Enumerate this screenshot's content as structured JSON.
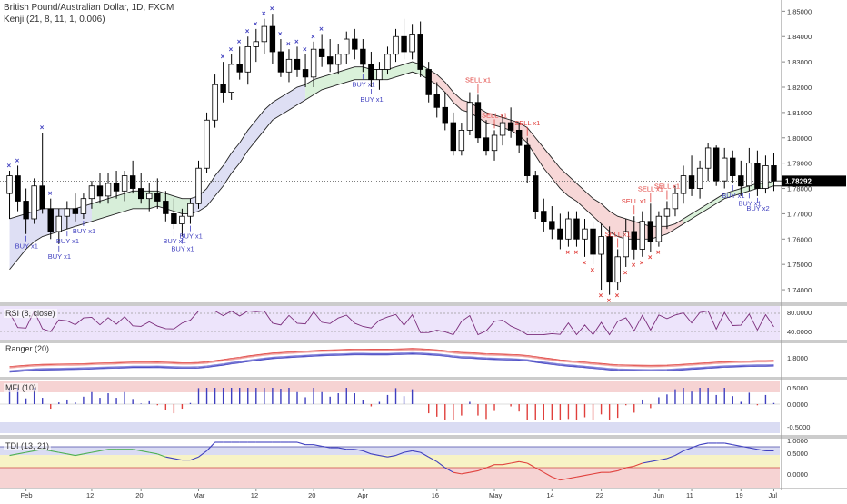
{
  "header": {
    "symbol": "British Pound/Australian Dollar, 1D, FXCM",
    "indicator": "Kenji (21, 8, 11, 1, 0.006)"
  },
  "last_price": "1.78292",
  "panes": {
    "rsi_label": "RSI (8, close)",
    "ranger_label": "Ranger (20)",
    "mfi_label": "MFI (10)",
    "tdi_label": "TDI (13, 21)"
  },
  "colors": {
    "up": "#ffffff",
    "down": "#000000",
    "buy": "#3f3fbf",
    "sell": "#e0403c",
    "band_up_fill": "#d6efd6",
    "band_down_fill": "#f6d3d3",
    "band_blue_fill": "#dadcf3",
    "rsi": "#7b2d7b",
    "rsi_fill": "#ede4fb",
    "ranger_red": "#e0403c",
    "ranger_blue": "#3f3fbf",
    "mfi_up": "#3f3fbf",
    "mfi_down": "#e0403c",
    "tdi_red": "#e0403c",
    "tdi_blue": "#3f3fbf",
    "tdi_green": "#4caf50"
  },
  "chart_data": {
    "type": "candlestick",
    "x_tick_labels": [
      "Feb",
      "12",
      "20",
      "Mar",
      "12",
      "20",
      "Apr",
      "16",
      "May",
      "14",
      "22",
      "Jun",
      "11",
      "19",
      "Jul"
    ],
    "y_tick_labels": [
      "1.85000",
      "1.84000",
      "1.83000",
      "1.82000",
      "1.81000",
      "1.80000",
      "1.79000",
      "1.78000",
      "1.77000",
      "1.76000",
      "1.75000",
      "1.74000"
    ],
    "ylim": [
      1.735,
      1.853
    ],
    "candles": [
      {
        "o": 1.778,
        "h": 1.787,
        "l": 1.768,
        "c": 1.785
      },
      {
        "o": 1.785,
        "h": 1.789,
        "l": 1.771,
        "c": 1.775
      },
      {
        "o": 1.775,
        "h": 1.78,
        "l": 1.762,
        "c": 1.768
      },
      {
        "o": 1.768,
        "h": 1.784,
        "l": 1.766,
        "c": 1.781
      },
      {
        "o": 1.781,
        "h": 1.802,
        "l": 1.77,
        "c": 1.772
      },
      {
        "o": 1.772,
        "h": 1.776,
        "l": 1.76,
        "c": 1.763
      },
      {
        "o": 1.763,
        "h": 1.772,
        "l": 1.758,
        "c": 1.769
      },
      {
        "o": 1.769,
        "h": 1.775,
        "l": 1.764,
        "c": 1.772
      },
      {
        "o": 1.772,
        "h": 1.778,
        "l": 1.767,
        "c": 1.77
      },
      {
        "o": 1.77,
        "h": 1.778,
        "l": 1.768,
        "c": 1.776
      },
      {
        "o": 1.776,
        "h": 1.783,
        "l": 1.772,
        "c": 1.781
      },
      {
        "o": 1.781,
        "h": 1.786,
        "l": 1.774,
        "c": 1.777
      },
      {
        "o": 1.777,
        "h": 1.786,
        "l": 1.774,
        "c": 1.782
      },
      {
        "o": 1.782,
        "h": 1.787,
        "l": 1.776,
        "c": 1.779
      },
      {
        "o": 1.779,
        "h": 1.787,
        "l": 1.775,
        "c": 1.785
      },
      {
        "o": 1.785,
        "h": 1.791,
        "l": 1.778,
        "c": 1.78
      },
      {
        "o": 1.78,
        "h": 1.786,
        "l": 1.774,
        "c": 1.776
      },
      {
        "o": 1.776,
        "h": 1.782,
        "l": 1.771,
        "c": 1.778
      },
      {
        "o": 1.778,
        "h": 1.784,
        "l": 1.772,
        "c": 1.775
      },
      {
        "o": 1.775,
        "h": 1.779,
        "l": 1.767,
        "c": 1.77
      },
      {
        "o": 1.77,
        "h": 1.776,
        "l": 1.764,
        "c": 1.766
      },
      {
        "o": 1.766,
        "h": 1.772,
        "l": 1.761,
        "c": 1.769
      },
      {
        "o": 1.769,
        "h": 1.776,
        "l": 1.766,
        "c": 1.774
      },
      {
        "o": 1.774,
        "h": 1.791,
        "l": 1.772,
        "c": 1.788
      },
      {
        "o": 1.788,
        "h": 1.81,
        "l": 1.786,
        "c": 1.807
      },
      {
        "o": 1.807,
        "h": 1.825,
        "l": 1.804,
        "c": 1.821
      },
      {
        "o": 1.821,
        "h": 1.83,
        "l": 1.814,
        "c": 1.818
      },
      {
        "o": 1.818,
        "h": 1.833,
        "l": 1.815,
        "c": 1.829
      },
      {
        "o": 1.829,
        "h": 1.836,
        "l": 1.823,
        "c": 1.826
      },
      {
        "o": 1.826,
        "h": 1.84,
        "l": 1.821,
        "c": 1.836
      },
      {
        "o": 1.836,
        "h": 1.843,
        "l": 1.83,
        "c": 1.838
      },
      {
        "o": 1.838,
        "h": 1.847,
        "l": 1.833,
        "c": 1.844
      },
      {
        "o": 1.844,
        "h": 1.849,
        "l": 1.829,
        "c": 1.834
      },
      {
        "o": 1.834,
        "h": 1.839,
        "l": 1.824,
        "c": 1.826
      },
      {
        "o": 1.826,
        "h": 1.835,
        "l": 1.822,
        "c": 1.831
      },
      {
        "o": 1.831,
        "h": 1.836,
        "l": 1.824,
        "c": 1.827
      },
      {
        "o": 1.827,
        "h": 1.833,
        "l": 1.82,
        "c": 1.824
      },
      {
        "o": 1.824,
        "h": 1.838,
        "l": 1.82,
        "c": 1.835
      },
      {
        "o": 1.835,
        "h": 1.841,
        "l": 1.828,
        "c": 1.832
      },
      {
        "o": 1.832,
        "h": 1.839,
        "l": 1.826,
        "c": 1.829
      },
      {
        "o": 1.829,
        "h": 1.837,
        "l": 1.825,
        "c": 1.833
      },
      {
        "o": 1.833,
        "h": 1.842,
        "l": 1.829,
        "c": 1.839
      },
      {
        "o": 1.839,
        "h": 1.843,
        "l": 1.831,
        "c": 1.835
      },
      {
        "o": 1.835,
        "h": 1.839,
        "l": 1.826,
        "c": 1.829
      },
      {
        "o": 1.829,
        "h": 1.834,
        "l": 1.82,
        "c": 1.823
      },
      {
        "o": 1.823,
        "h": 1.83,
        "l": 1.819,
        "c": 1.827
      },
      {
        "o": 1.827,
        "h": 1.836,
        "l": 1.825,
        "c": 1.833
      },
      {
        "o": 1.833,
        "h": 1.843,
        "l": 1.83,
        "c": 1.84
      },
      {
        "o": 1.84,
        "h": 1.847,
        "l": 1.831,
        "c": 1.834
      },
      {
        "o": 1.834,
        "h": 1.845,
        "l": 1.831,
        "c": 1.841
      },
      {
        "o": 1.841,
        "h": 1.846,
        "l": 1.824,
        "c": 1.827
      },
      {
        "o": 1.827,
        "h": 1.83,
        "l": 1.814,
        "c": 1.817
      },
      {
        "o": 1.817,
        "h": 1.822,
        "l": 1.808,
        "c": 1.812
      },
      {
        "o": 1.812,
        "h": 1.818,
        "l": 1.803,
        "c": 1.806
      },
      {
        "o": 1.806,
        "h": 1.81,
        "l": 1.793,
        "c": 1.795
      },
      {
        "o": 1.795,
        "h": 1.806,
        "l": 1.793,
        "c": 1.803
      },
      {
        "o": 1.803,
        "h": 1.818,
        "l": 1.801,
        "c": 1.814
      },
      {
        "o": 1.814,
        "h": 1.817,
        "l": 1.798,
        "c": 1.8
      },
      {
        "o": 1.8,
        "h": 1.807,
        "l": 1.793,
        "c": 1.795
      },
      {
        "o": 1.795,
        "h": 1.803,
        "l": 1.791,
        "c": 1.801
      },
      {
        "o": 1.801,
        "h": 1.809,
        "l": 1.797,
        "c": 1.806
      },
      {
        "o": 1.806,
        "h": 1.812,
        "l": 1.8,
        "c": 1.803
      },
      {
        "o": 1.803,
        "h": 1.806,
        "l": 1.794,
        "c": 1.797
      },
      {
        "o": 1.797,
        "h": 1.8,
        "l": 1.782,
        "c": 1.785
      },
      {
        "o": 1.785,
        "h": 1.787,
        "l": 1.768,
        "c": 1.771
      },
      {
        "o": 1.771,
        "h": 1.776,
        "l": 1.763,
        "c": 1.767
      },
      {
        "o": 1.767,
        "h": 1.773,
        "l": 1.76,
        "c": 1.764
      },
      {
        "o": 1.764,
        "h": 1.77,
        "l": 1.756,
        "c": 1.76
      },
      {
        "o": 1.76,
        "h": 1.771,
        "l": 1.757,
        "c": 1.768
      },
      {
        "o": 1.768,
        "h": 1.771,
        "l": 1.757,
        "c": 1.76
      },
      {
        "o": 1.76,
        "h": 1.768,
        "l": 1.753,
        "c": 1.764
      },
      {
        "o": 1.764,
        "h": 1.767,
        "l": 1.75,
        "c": 1.754
      },
      {
        "o": 1.754,
        "h": 1.766,
        "l": 1.74,
        "c": 1.761
      },
      {
        "o": 1.761,
        "h": 1.765,
        "l": 1.738,
        "c": 1.743
      },
      {
        "o": 1.743,
        "h": 1.756,
        "l": 1.74,
        "c": 1.753
      },
      {
        "o": 1.753,
        "h": 1.768,
        "l": 1.749,
        "c": 1.763
      },
      {
        "o": 1.763,
        "h": 1.769,
        "l": 1.752,
        "c": 1.756
      },
      {
        "o": 1.756,
        "h": 1.771,
        "l": 1.753,
        "c": 1.767
      },
      {
        "o": 1.767,
        "h": 1.774,
        "l": 1.755,
        "c": 1.759
      },
      {
        "o": 1.759,
        "h": 1.771,
        "l": 1.757,
        "c": 1.769
      },
      {
        "o": 1.769,
        "h": 1.775,
        "l": 1.764,
        "c": 1.772
      },
      {
        "o": 1.772,
        "h": 1.781,
        "l": 1.769,
        "c": 1.778
      },
      {
        "o": 1.778,
        "h": 1.789,
        "l": 1.774,
        "c": 1.785
      },
      {
        "o": 1.785,
        "h": 1.793,
        "l": 1.777,
        "c": 1.78
      },
      {
        "o": 1.78,
        "h": 1.791,
        "l": 1.776,
        "c": 1.788
      },
      {
        "o": 1.788,
        "h": 1.798,
        "l": 1.783,
        "c": 1.796
      },
      {
        "o": 1.796,
        "h": 1.797,
        "l": 1.781,
        "c": 1.783
      },
      {
        "o": 1.783,
        "h": 1.796,
        "l": 1.78,
        "c": 1.792
      },
      {
        "o": 1.792,
        "h": 1.795,
        "l": 1.782,
        "c": 1.785
      },
      {
        "o": 1.785,
        "h": 1.791,
        "l": 1.777,
        "c": 1.781
      },
      {
        "o": 1.781,
        "h": 1.796,
        "l": 1.779,
        "c": 1.79
      },
      {
        "o": 1.79,
        "h": 1.795,
        "l": 1.777,
        "c": 1.78
      },
      {
        "o": 1.78,
        "h": 1.793,
        "l": 1.778,
        "c": 1.789
      },
      {
        "o": 1.789,
        "h": 1.794,
        "l": 1.779,
        "c": 1.783
      }
    ],
    "band_upper": [
      1.768,
      1.769,
      1.77,
      1.771,
      1.772,
      1.772,
      1.772,
      1.772,
      1.772,
      1.773,
      1.774,
      1.775,
      1.776,
      1.777,
      1.778,
      1.779,
      1.779,
      1.779,
      1.779,
      1.778,
      1.777,
      1.776,
      1.776,
      1.777,
      1.78,
      1.785,
      1.789,
      1.794,
      1.798,
      1.803,
      1.807,
      1.811,
      1.814,
      1.816,
      1.818,
      1.82,
      1.821,
      1.823,
      1.824,
      1.825,
      1.826,
      1.827,
      1.828,
      1.828,
      1.827,
      1.827,
      1.827,
      1.828,
      1.829,
      1.83,
      1.829,
      1.827,
      1.825,
      1.822,
      1.818,
      1.815,
      1.814,
      1.812,
      1.81,
      1.809,
      1.808,
      1.807,
      1.806,
      1.804,
      1.8,
      1.796,
      1.792,
      1.788,
      1.785,
      1.782,
      1.779,
      1.776,
      1.774,
      1.771,
      1.769,
      1.768,
      1.767,
      1.766,
      1.765,
      1.765,
      1.765,
      1.766,
      1.768,
      1.77,
      1.772,
      1.774,
      1.776,
      1.778,
      1.779,
      1.78,
      1.781,
      1.782,
      1.782,
      1.783,
      1.783
    ],
    "band_lower": [
      1.748,
      1.752,
      1.756,
      1.759,
      1.761,
      1.762,
      1.763,
      1.764,
      1.765,
      1.766,
      1.767,
      1.768,
      1.769,
      1.77,
      1.771,
      1.772,
      1.772,
      1.772,
      1.773,
      1.772,
      1.771,
      1.77,
      1.77,
      1.771,
      1.773,
      1.777,
      1.781,
      1.786,
      1.79,
      1.795,
      1.799,
      1.803,
      1.807,
      1.809,
      1.811,
      1.813,
      1.815,
      1.817,
      1.819,
      1.82,
      1.821,
      1.822,
      1.823,
      1.823,
      1.823,
      1.823,
      1.823,
      1.824,
      1.825,
      1.826,
      1.825,
      1.823,
      1.821,
      1.818,
      1.814,
      1.811,
      1.81,
      1.808,
      1.806,
      1.805,
      1.804,
      1.803,
      1.801,
      1.798,
      1.793,
      1.788,
      1.784,
      1.78,
      1.777,
      1.775,
      1.772,
      1.769,
      1.766,
      1.763,
      1.761,
      1.76,
      1.76,
      1.76,
      1.76,
      1.761,
      1.762,
      1.764,
      1.766,
      1.768,
      1.77,
      1.772,
      1.774,
      1.776,
      1.777,
      1.778,
      1.779,
      1.78,
      1.78,
      1.781,
      1.781
    ],
    "signals": [
      {
        "i": 2,
        "label": "BUY x1",
        "type": "buy"
      },
      {
        "i": 6,
        "label": "BUY x1",
        "type": "buy"
      },
      {
        "i": 7,
        "label": "BUY x1",
        "type": "buy"
      },
      {
        "i": 9,
        "label": "BUY x1",
        "type": "buy"
      },
      {
        "i": 20,
        "label": "BUY x1",
        "type": "buy"
      },
      {
        "i": 21,
        "label": "BUY x1",
        "type": "buy"
      },
      {
        "i": 22,
        "label": "BUY x1",
        "type": "buy"
      },
      {
        "i": 43,
        "label": "BUY x1",
        "type": "buy"
      },
      {
        "i": 44,
        "label": "BUY x1",
        "type": "buy"
      },
      {
        "i": 57,
        "label": "SELL x1",
        "type": "sell"
      },
      {
        "i": 59,
        "label": "SELL x1",
        "type": "sell"
      },
      {
        "i": 63,
        "label": "SELL x1",
        "type": "sell"
      },
      {
        "i": 74,
        "label": "SELL x1",
        "type": "sell"
      },
      {
        "i": 76,
        "label": "SELL x1",
        "type": "sell"
      },
      {
        "i": 78,
        "label": "SELL x1",
        "type": "sell"
      },
      {
        "i": 80,
        "label": "SELL x1",
        "type": "sell"
      },
      {
        "i": 88,
        "label": "BUY x1",
        "type": "buy"
      },
      {
        "i": 90,
        "label": "BUY x1",
        "type": "buy"
      },
      {
        "i": 91,
        "label": "BUY x2",
        "type": "buy"
      }
    ],
    "x_marks_buy": [
      0,
      1,
      4,
      5,
      26,
      27,
      28,
      29,
      30,
      31,
      32,
      33,
      34,
      35,
      36,
      37,
      38
    ],
    "x_marks_sell": [
      68,
      69,
      70,
      71,
      72,
      73,
      74,
      75,
      76,
      77,
      78,
      79
    ],
    "rsi_ticks": [
      "80.0000",
      "40.0000"
    ],
    "ranger_ticks": [
      "1.8000"
    ],
    "mfi_ticks": [
      "0.5000",
      "0.0000",
      "-0.5000"
    ],
    "tdi_ticks": [
      "1.0000",
      "0.5000",
      "0.0000"
    ]
  }
}
